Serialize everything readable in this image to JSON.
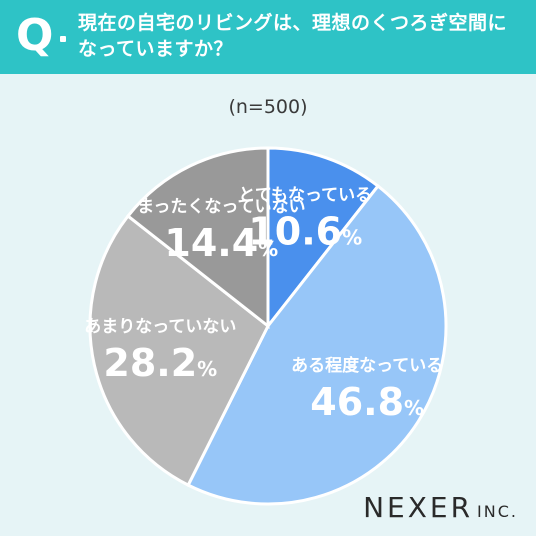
{
  "header": {
    "mark": "Q",
    "question": "現在の自宅のリビングは、理想のくつろぎ空間になっていますか？"
  },
  "sample_label": "(n=500)",
  "brand": {
    "name": "NEXER",
    "suffix": "INC."
  },
  "chart_data": {
    "type": "pie",
    "title": "",
    "start_angle_deg": 0,
    "direction": "clockwise",
    "slices": [
      {
        "label": "とてもなっている",
        "value": 10.6,
        "display": "10.6",
        "color": "#4a90ed",
        "text_color": "#ffffff"
      },
      {
        "label": "ある程度なっている",
        "value": 46.8,
        "display": "46.8",
        "color": "#97c6f8",
        "text_color": "#ffffff"
      },
      {
        "label": "あまりなっていない",
        "value": 28.2,
        "display": "28.2",
        "color": "#b9b9b9",
        "text_color": "#ffffff"
      },
      {
        "label": "まったくなっていない",
        "value": 14.4,
        "display": "14.4",
        "color": "#999999",
        "text_color": "#ffffff"
      }
    ],
    "unit": "%"
  }
}
